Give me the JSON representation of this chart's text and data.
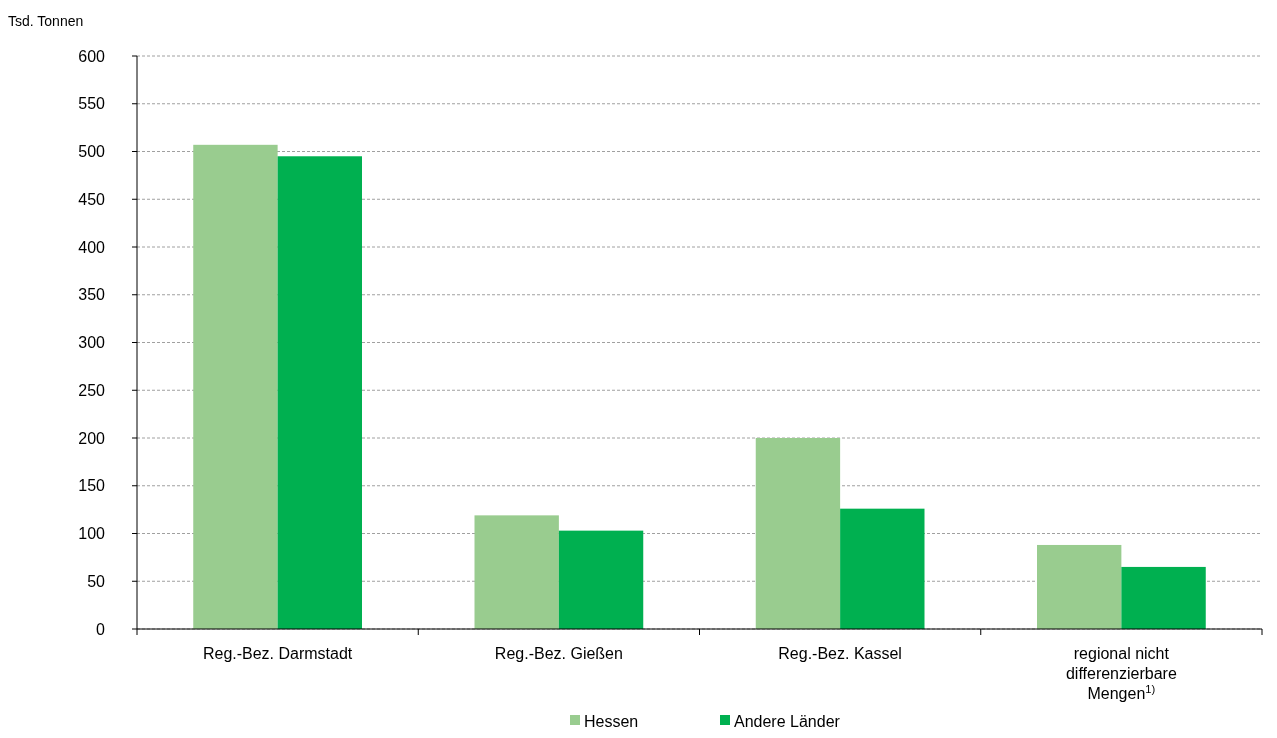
{
  "chart_data": {
    "type": "bar",
    "ylabel": "Tsd. Tonnen",
    "categories": [
      "Reg.-Bez. Darmstadt",
      "Reg.-Bez. Gießen",
      "Reg.-Bez. Kassel",
      "regional nicht differenzierbare Mengen$^{1)}$"
    ],
    "series": [
      {
        "name": "Hessen",
        "color": "#99cc8f",
        "values": [
          507,
          119,
          200,
          88
        ]
      },
      {
        "name": "Andere Länder",
        "color": "#00b050",
        "values": [
          495,
          103,
          126,
          65
        ]
      }
    ],
    "ylim": [
      0,
      600
    ],
    "yticks": [
      0,
      50,
      100,
      150,
      200,
      250,
      300,
      350,
      400,
      450,
      500,
      550,
      600
    ],
    "grid": "y",
    "legend": "bottom"
  }
}
